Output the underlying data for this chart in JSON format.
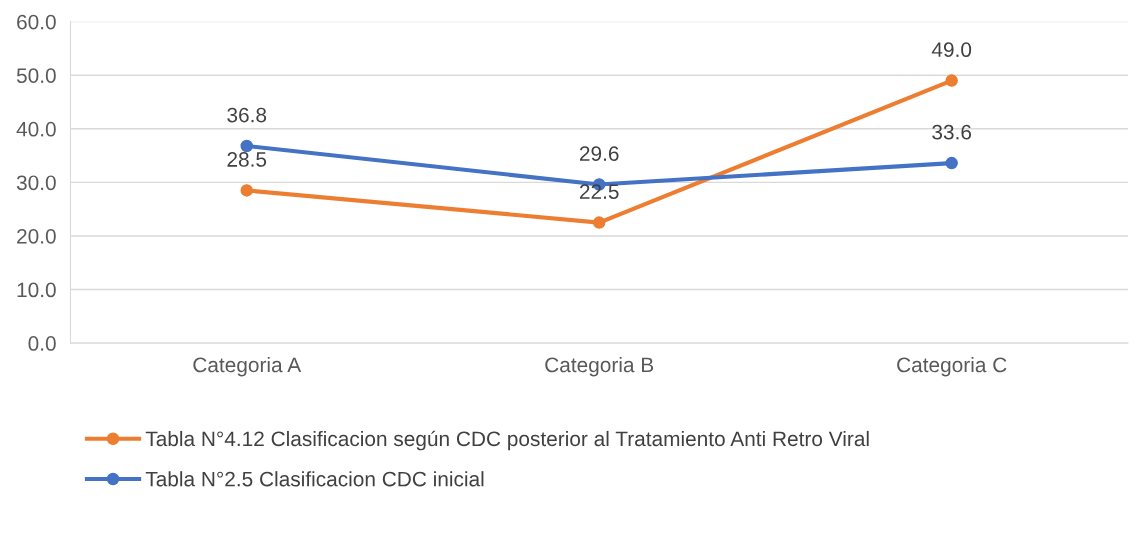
{
  "chart_data": {
    "type": "line",
    "categories": [
      "Categoria A",
      "Categoria B",
      "Categoria C"
    ],
    "series": [
      {
        "name": "Tabla N°4.12 Clasificacion según CDC posterior al Tratamiento Anti Retro Viral",
        "color": "#ed7d31",
        "values": [
          28.5,
          22.5,
          49.0
        ],
        "value_labels": [
          "28.5",
          "22.5",
          "49.0"
        ]
      },
      {
        "name": "Tabla N°2.5 Clasificacion CDC inicial",
        "color": "#4472c4",
        "values": [
          36.8,
          29.6,
          33.6
        ],
        "value_labels": [
          "36.8",
          "29.6",
          "33.6"
        ]
      }
    ],
    "ylim": [
      0,
      60
    ],
    "yticks": [
      {
        "value": 0,
        "label": "0.0"
      },
      {
        "value": 10,
        "label": "10.0"
      },
      {
        "value": 20,
        "label": "20.0"
      },
      {
        "value": 30,
        "label": "30.0"
      },
      {
        "value": 40,
        "label": "40.0"
      },
      {
        "value": 50,
        "label": "50.0"
      },
      {
        "value": 60,
        "label": "60.0"
      }
    ],
    "grid": "y",
    "legend": "bottom",
    "marker": "circle",
    "line_style": "solid"
  }
}
